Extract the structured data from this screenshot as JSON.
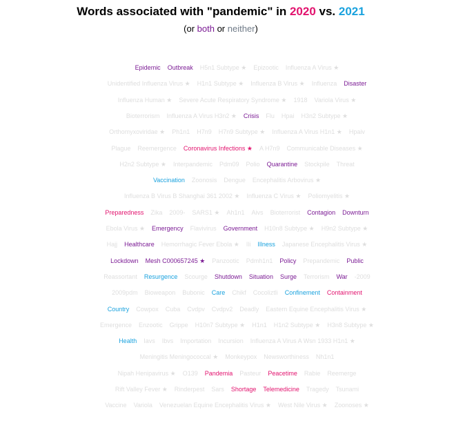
{
  "header": {
    "title_prefix": "Words associated with \"pandemic\" in ",
    "title_y1": "2020",
    "title_mid": " vs. ",
    "title_y2": "2021",
    "subtitle_open": "(or ",
    "subtitle_both": "both",
    "subtitle_or": " or ",
    "subtitle_neither": "neither",
    "subtitle_close": ")"
  },
  "colors": {
    "c2020": "#e2136e",
    "c2021": "#1aa2de",
    "both": "#7b1b94",
    "neither": "#dedede"
  },
  "rows": [
    [
      [
        "Epidemic",
        "both"
      ],
      [
        "Outbreak",
        "both"
      ],
      [
        "H5n1 Subtype ★",
        "neither"
      ],
      [
        "Epizootic",
        "neither"
      ],
      [
        "Influenza A Virus ★",
        "neither"
      ]
    ],
    [
      [
        "Unidentified Influenza Virus ★",
        "neither"
      ],
      [
        "H1n1 Subtype ★",
        "neither"
      ],
      [
        "Influenza B Virus ★",
        "neither"
      ],
      [
        "Influenza",
        "neither"
      ],
      [
        "Disaster",
        "both"
      ]
    ],
    [
      [
        "Influenza Human ★",
        "neither"
      ],
      [
        "Severe Acute Respiratory Syndrome ★",
        "neither"
      ],
      [
        "1918",
        "neither"
      ],
      [
        "Variola Virus ★",
        "neither"
      ]
    ],
    [
      [
        "Bioterrorism",
        "neither"
      ],
      [
        "Influenza A Virus H3n2 ★",
        "neither"
      ],
      [
        "Crisis",
        "both"
      ],
      [
        "Flu",
        "neither"
      ],
      [
        "Hpai",
        "neither"
      ],
      [
        "H3n2 Subtype ★",
        "neither"
      ]
    ],
    [
      [
        "Orthomyxoviridae ★",
        "neither"
      ],
      [
        "Ph1n1",
        "neither"
      ],
      [
        "H7n9",
        "neither"
      ],
      [
        "H7n9 Subtype ★",
        "neither"
      ],
      [
        "Influenza A Virus H1n1 ★",
        "neither"
      ],
      [
        "Hpaiv",
        "neither"
      ]
    ],
    [
      [
        "Plague",
        "neither"
      ],
      [
        "Reemergence",
        "neither"
      ],
      [
        "Coronavirus Infections ★",
        "2020"
      ],
      [
        "A H7n9",
        "neither"
      ],
      [
        "Communicable Diseases ★",
        "neither"
      ]
    ],
    [
      [
        "H2n2 Subtype ★",
        "neither"
      ],
      [
        "Interpandemic",
        "neither"
      ],
      [
        "Pdm09",
        "neither"
      ],
      [
        "Polio",
        "neither"
      ],
      [
        "Quarantine",
        "both"
      ],
      [
        "Stockpile",
        "neither"
      ],
      [
        "Threat",
        "neither"
      ]
    ],
    [
      [
        "Vaccination",
        "2021"
      ],
      [
        "Zoonosis",
        "neither"
      ],
      [
        "Dengue",
        "neither"
      ],
      [
        "Encephalitis Arbovirus ★",
        "neither"
      ]
    ],
    [
      [
        "Influenza B Virus B Shanghai 361 2002 ★",
        "neither"
      ],
      [
        "Influenza C Virus ★",
        "neither"
      ],
      [
        "Poliomyelitis ★",
        "neither"
      ]
    ],
    [
      [
        "Preparedness",
        "2020"
      ],
      [
        "Zika",
        "neither"
      ],
      [
        "2009-",
        "neither"
      ],
      [
        "SARS1 ★",
        "neither"
      ],
      [
        "Ah1n1",
        "neither"
      ],
      [
        "Aivs",
        "neither"
      ],
      [
        "Bioterrorist",
        "neither"
      ],
      [
        "Contagion",
        "both"
      ],
      [
        "Downturn",
        "both"
      ]
    ],
    [
      [
        "Ebola Virus ★",
        "neither"
      ],
      [
        "Emergency",
        "both"
      ],
      [
        "Flavivirus",
        "neither"
      ],
      [
        "Government",
        "both"
      ],
      [
        "H10n8 Subtype ★",
        "neither"
      ],
      [
        "H9n2 Subtype ★",
        "neither"
      ]
    ],
    [
      [
        "Hajj",
        "neither"
      ],
      [
        "Healthcare",
        "both"
      ],
      [
        "Hemorrhagic Fever Ebola ★",
        "neither"
      ],
      [
        "Ili",
        "neither"
      ],
      [
        "Illness",
        "2021"
      ],
      [
        "Japanese Encephalitis Virus ★",
        "neither"
      ]
    ],
    [
      [
        "Lockdown",
        "both"
      ],
      [
        "Mesh C000657245 ★",
        "both"
      ],
      [
        "Panzootic",
        "neither"
      ],
      [
        "Pdmh1n1",
        "neither"
      ],
      [
        "Policy",
        "both"
      ],
      [
        "Prepandemic",
        "neither"
      ],
      [
        "Public",
        "both"
      ]
    ],
    [
      [
        "Reassortant",
        "neither"
      ],
      [
        "Resurgence",
        "2021"
      ],
      [
        "Scourge",
        "neither"
      ],
      [
        "Shutdown",
        "both"
      ],
      [
        "Situation",
        "both"
      ],
      [
        "Surge",
        "both"
      ],
      [
        "Terrorism",
        "neither"
      ],
      [
        "War",
        "both"
      ],
      [
        "-2009",
        "neither"
      ]
    ],
    [
      [
        "2009pdm",
        "neither"
      ],
      [
        "Bioweapon",
        "neither"
      ],
      [
        "Bubonic",
        "neither"
      ],
      [
        "Care",
        "2021"
      ],
      [
        "Chikf",
        "neither"
      ],
      [
        "Cocoliztli",
        "neither"
      ],
      [
        "Confinement",
        "2021"
      ],
      [
        "Containment",
        "2020"
      ]
    ],
    [
      [
        "Country",
        "2021"
      ],
      [
        "Cowpox",
        "neither"
      ],
      [
        "Cuba",
        "neither"
      ],
      [
        "Cvdpv",
        "neither"
      ],
      [
        "Cvdpv2",
        "neither"
      ],
      [
        "Deadly",
        "neither"
      ],
      [
        "Eastern Equine Encephalitis Virus ★",
        "neither"
      ]
    ],
    [
      [
        "Emergence",
        "neither"
      ],
      [
        "Enzootic",
        "neither"
      ],
      [
        "Grippe",
        "neither"
      ],
      [
        "H10n7 Subtype ★",
        "neither"
      ],
      [
        "H1n1",
        "neither"
      ],
      [
        "H1n2 Subtype ★",
        "neither"
      ],
      [
        "H3n8 Subtype ★",
        "neither"
      ]
    ],
    [
      [
        "Health",
        "2021"
      ],
      [
        "Iavs",
        "neither"
      ],
      [
        "Ibvs",
        "neither"
      ],
      [
        "Importation",
        "neither"
      ],
      [
        "Incursion",
        "neither"
      ],
      [
        "Influenza A Virus A Wsn 1933 H1n1 ★",
        "neither"
      ]
    ],
    [
      [
        "Meningitis Meningococcal ★",
        "neither"
      ],
      [
        "Monkeypox",
        "neither"
      ],
      [
        "Newsworthiness",
        "neither"
      ],
      [
        "Nh1n1",
        "neither"
      ]
    ],
    [
      [
        "Nipah Henipavirus ★",
        "neither"
      ],
      [
        "O139",
        "neither"
      ],
      [
        "Pandemia",
        "2020"
      ],
      [
        "Pasteur",
        "neither"
      ],
      [
        "Peacetime",
        "2020"
      ],
      [
        "Rabie",
        "neither"
      ],
      [
        "Reemerge",
        "neither"
      ]
    ],
    [
      [
        "Rift Valley Fever ★",
        "neither"
      ],
      [
        "Rinderpest",
        "neither"
      ],
      [
        "Sars",
        "neither"
      ],
      [
        "Shortage",
        "2020"
      ],
      [
        "Telemedicine",
        "2020"
      ],
      [
        "Tragedy",
        "neither"
      ],
      [
        "Tsunami",
        "neither"
      ]
    ],
    [
      [
        "Vaccine",
        "neither"
      ],
      [
        "Variola",
        "neither"
      ],
      [
        "Venezuelan Equine Encephalitis Virus ★",
        "neither"
      ],
      [
        "West Nile Virus ★",
        "neither"
      ],
      [
        "Zoonoses ★",
        "neither"
      ]
    ]
  ]
}
